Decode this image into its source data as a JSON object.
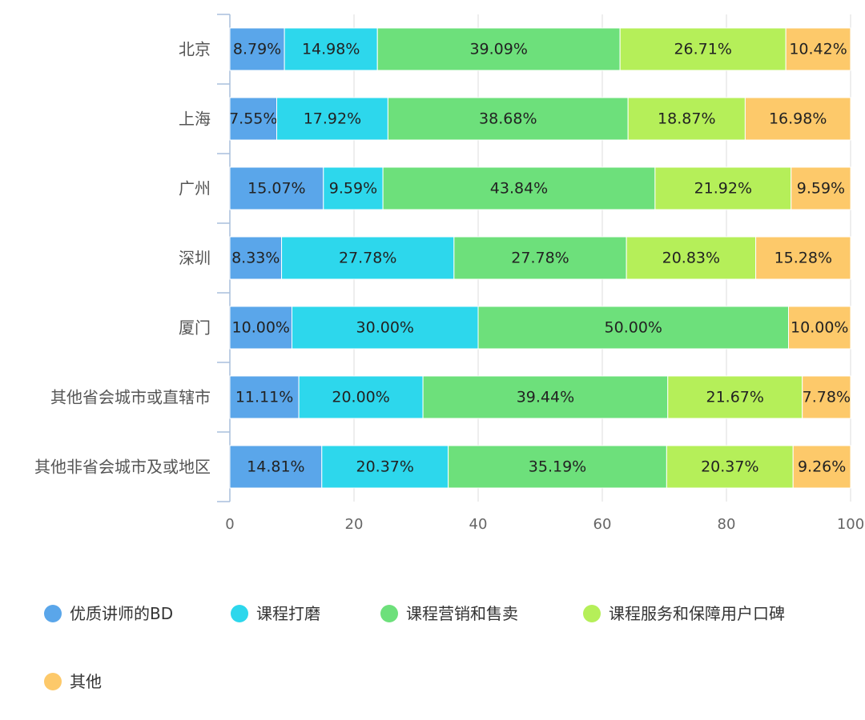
{
  "chart_data": {
    "type": "bar",
    "orientation": "horizontal",
    "stacked": true,
    "percent_stacked": true,
    "categories": [
      "北京",
      "上海",
      "广州",
      "深圳",
      "厦门",
      "其他省会城市或直辖市",
      "其他非省会城市及或地区"
    ],
    "series": [
      {
        "name": "优质讲师的BD",
        "color": "#5aa6ea",
        "values": [
          8.79,
          7.55,
          15.07,
          8.33,
          10.0,
          11.11,
          14.81
        ],
        "labels": [
          "8.79%",
          "7.55%",
          "15.07%",
          "8.33%",
          "10.00%",
          "11.11%",
          "14.81%"
        ]
      },
      {
        "name": "课程打磨",
        "color": "#2dd7ec",
        "values": [
          14.98,
          17.92,
          9.59,
          27.78,
          30.0,
          20.0,
          20.37
        ],
        "labels": [
          "14.98%",
          "17.92%",
          "9.59%",
          "27.78%",
          "30.00%",
          "20.00%",
          "20.37%"
        ]
      },
      {
        "name": "课程营销和售卖",
        "color": "#6de07b",
        "values": [
          39.09,
          38.68,
          43.84,
          27.78,
          50.0,
          39.44,
          35.19
        ],
        "labels": [
          "39.09%",
          "38.68%",
          "43.84%",
          "27.78%",
          "50.00%",
          "39.44%",
          "35.19%"
        ]
      },
      {
        "name": "课程服务和保障用户口碑",
        "color": "#b5ef59",
        "values": [
          26.71,
          18.87,
          21.92,
          20.83,
          0,
          21.67,
          20.37
        ],
        "labels": [
          "26.71%",
          "18.87%",
          "21.92%",
          "20.83%",
          "",
          "21.67%",
          "20.37%"
        ]
      },
      {
        "name": "其他",
        "color": "#fdc96a",
        "values": [
          10.42,
          16.98,
          9.59,
          15.28,
          10.0,
          7.78,
          9.26
        ],
        "labels": [
          "10.42%",
          "16.98%",
          "9.59%",
          "15.28%",
          "10.00%",
          "7.78%",
          "9.26%"
        ]
      }
    ],
    "x_ticks": [
      "0",
      "20",
      "40",
      "60",
      "80",
      "100"
    ],
    "xlim": [
      0,
      100
    ],
    "grid": true,
    "legend_position": "bottom"
  }
}
